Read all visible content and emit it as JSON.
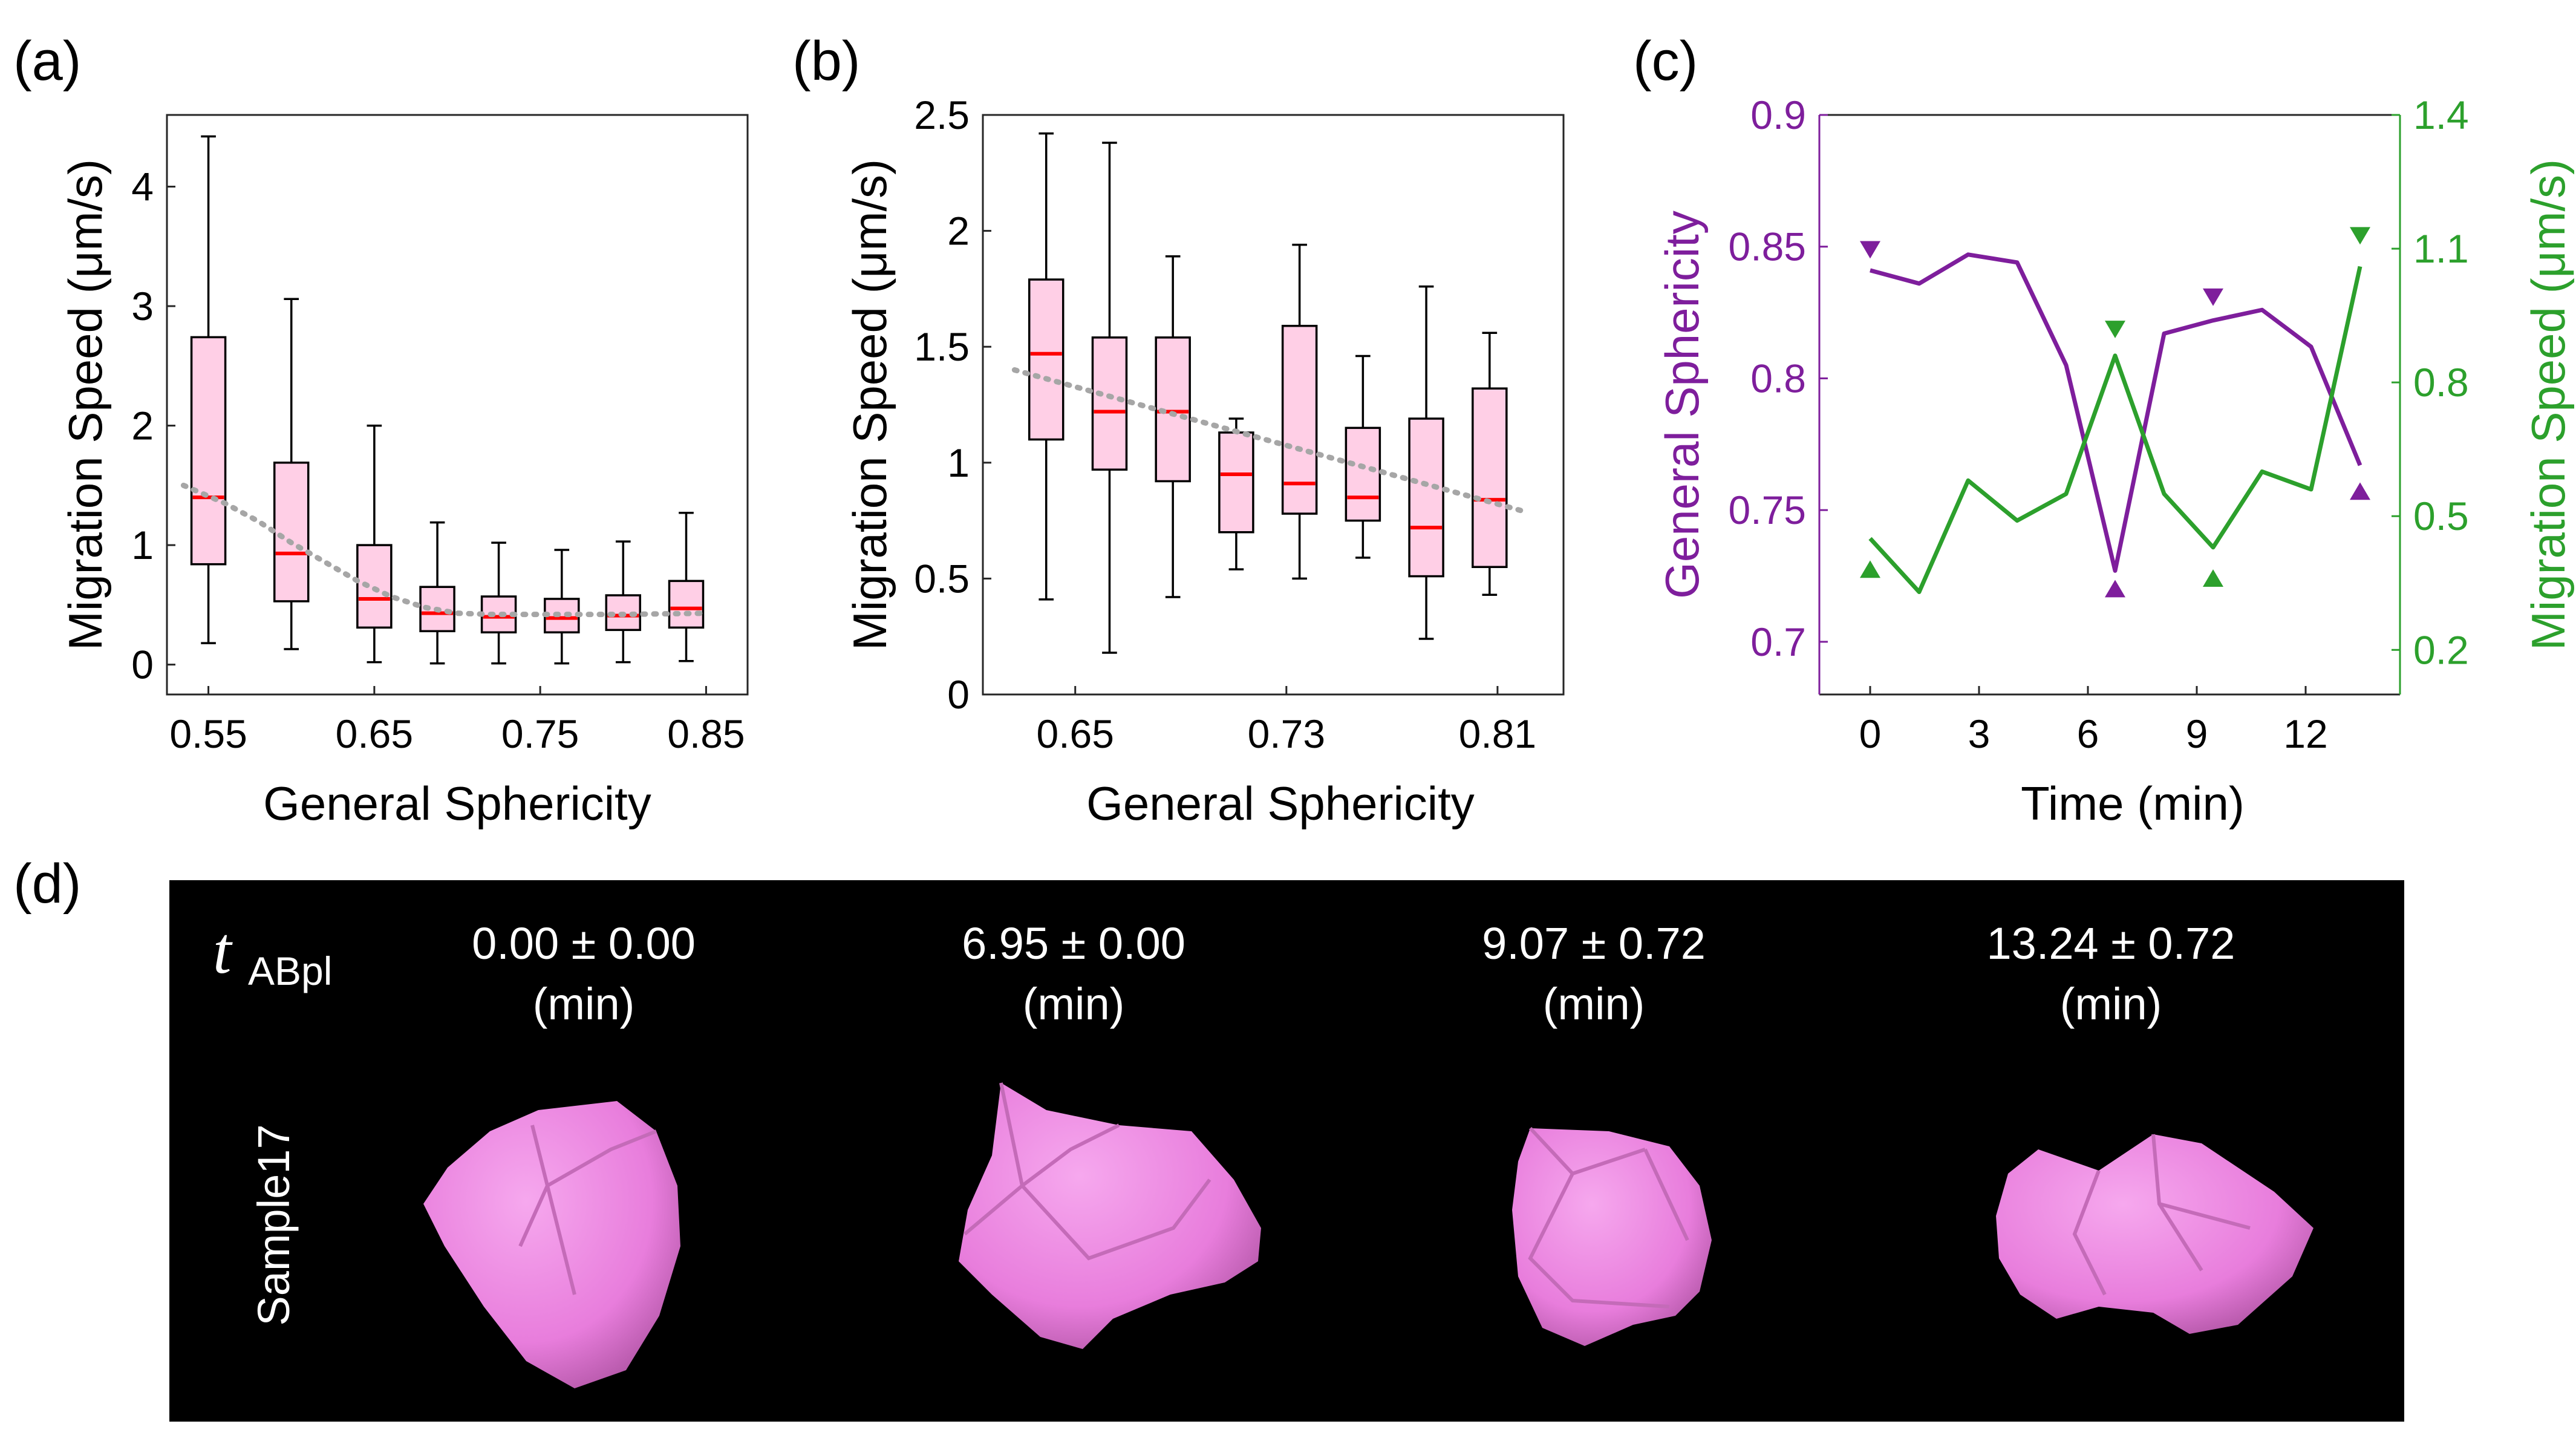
{
  "panels": {
    "a": "(a)",
    "b": "(b)",
    "c": "(c)",
    "d": "(d)"
  },
  "chart_data": [
    {
      "id": "a",
      "type": "box",
      "xlabel": "General Sphericity",
      "ylabel": "Migration Speed (μm/s)",
      "xlim": [
        0.525,
        0.875
      ],
      "ylim": [
        -0.25,
        4.6
      ],
      "xticks": [
        0.55,
        0.65,
        0.75,
        0.85
      ],
      "xtick_labels": [
        "0.55",
        "0.65",
        "0.75",
        "0.85"
      ],
      "yticks": [
        0,
        1,
        2,
        3,
        4
      ],
      "ytick_labels": [
        "0",
        "1",
        "2",
        "3",
        "4"
      ],
      "colors": {
        "box": "#ffcfe6",
        "median": "#ff0000",
        "trend": "#a6a6a6"
      },
      "boxes": [
        {
          "x": 0.55,
          "min": 0.18,
          "q1": 0.84,
          "median": 1.4,
          "q3": 2.74,
          "max": 4.42
        },
        {
          "x": 0.6,
          "min": 0.13,
          "q1": 0.53,
          "median": 0.93,
          "q3": 1.69,
          "max": 3.06
        },
        {
          "x": 0.65,
          "min": 0.02,
          "q1": 0.31,
          "median": 0.55,
          "q3": 1.0,
          "max": 2.0
        },
        {
          "x": 0.688,
          "min": 0.01,
          "q1": 0.28,
          "median": 0.43,
          "q3": 0.65,
          "max": 1.19
        },
        {
          "x": 0.725,
          "min": 0.01,
          "q1": 0.27,
          "median": 0.4,
          "q3": 0.57,
          "max": 1.02
        },
        {
          "x": 0.763,
          "min": 0.01,
          "q1": 0.27,
          "median": 0.39,
          "q3": 0.55,
          "max": 0.96
        },
        {
          "x": 0.8,
          "min": 0.02,
          "q1": 0.29,
          "median": 0.41,
          "q3": 0.58,
          "max": 1.03
        },
        {
          "x": 0.838,
          "min": 0.03,
          "q1": 0.31,
          "median": 0.47,
          "q3": 0.7,
          "max": 1.27
        }
      ],
      "trend": {
        "x": [
          0.535,
          0.56,
          0.58,
          0.6,
          0.62,
          0.64,
          0.66,
          0.68,
          0.7,
          0.72,
          0.75,
          0.8,
          0.85
        ],
        "y": [
          1.5,
          1.35,
          1.2,
          1.02,
          0.86,
          0.7,
          0.57,
          0.48,
          0.43,
          0.42,
          0.42,
          0.42,
          0.43
        ]
      }
    },
    {
      "id": "b",
      "type": "box",
      "xlabel": "General Sphericity",
      "ylabel": "Migration Speed (μm/s)",
      "xlim": [
        0.615,
        0.835
      ],
      "ylim": [
        0,
        2.5
      ],
      "xticks": [
        0.65,
        0.73,
        0.81
      ],
      "xtick_labels": [
        "0.65",
        "0.73",
        "0.81"
      ],
      "yticks": [
        0,
        0.5,
        1,
        1.5,
        2,
        2.5
      ],
      "ytick_labels": [
        "0",
        "0.5",
        "1",
        "1.5",
        "2",
        "2.5"
      ],
      "colors": {
        "box": "#ffcfe6",
        "median": "#ff0000",
        "trend": "#a6a6a6"
      },
      "boxes": [
        {
          "x": 0.639,
          "min": 0.41,
          "q1": 1.1,
          "median": 1.47,
          "q3": 1.79,
          "max": 2.42
        },
        {
          "x": 0.663,
          "min": 0.18,
          "q1": 0.97,
          "median": 1.22,
          "q3": 1.54,
          "max": 2.38
        },
        {
          "x": 0.687,
          "min": 0.42,
          "q1": 0.92,
          "median": 1.22,
          "q3": 1.54,
          "max": 1.89
        },
        {
          "x": 0.711,
          "min": 0.54,
          "q1": 0.7,
          "median": 0.95,
          "q3": 1.13,
          "max": 1.19
        },
        {
          "x": 0.735,
          "min": 0.5,
          "q1": 0.78,
          "median": 0.91,
          "q3": 1.59,
          "max": 1.94
        },
        {
          "x": 0.759,
          "min": 0.59,
          "q1": 0.75,
          "median": 0.85,
          "q3": 1.15,
          "max": 1.46
        },
        {
          "x": 0.783,
          "min": 0.24,
          "q1": 0.51,
          "median": 0.72,
          "q3": 1.19,
          "max": 1.76
        },
        {
          "x": 0.807,
          "min": 0.43,
          "q1": 0.55,
          "median": 0.84,
          "q3": 1.32,
          "max": 1.56
        }
      ],
      "trend": {
        "x": [
          0.627,
          0.82
        ],
        "y": [
          1.4,
          0.79
        ]
      }
    },
    {
      "id": "c",
      "type": "line",
      "xlabel": "Time (min)",
      "ylabel_left": "General Sphericity",
      "ylabel_right": "Migration Speed (μm/s)",
      "xlim": [
        -1.4,
        14.6
      ],
      "ylim_left": [
        0.68,
        0.9
      ],
      "ylim_right": [
        0.1,
        1.4
      ],
      "xticks": [
        0,
        3,
        6,
        9,
        12
      ],
      "xtick_labels": [
        "0",
        "3",
        "6",
        "9",
        "12"
      ],
      "yticks_left": [
        0.7,
        0.75,
        0.8,
        0.85,
        0.9
      ],
      "ytick_labels_left": [
        "0.7",
        "0.75",
        "0.8",
        "0.85",
        "0.9"
      ],
      "yticks_right": [
        0.2,
        0.5,
        0.8,
        1.1,
        1.4
      ],
      "ytick_labels_right": [
        "0.2",
        "0.5",
        "0.8",
        "1.1",
        "1.4"
      ],
      "colors": {
        "sphericity": "#7e1e9c",
        "speed": "#2ca02c"
      },
      "series": [
        {
          "axis": "left",
          "x": [
            0,
            1.35,
            2.7,
            4.05,
            5.4,
            6.75,
            8.1,
            9.45,
            10.8,
            12.15,
            13.5
          ],
          "values": [
            0.841,
            0.836,
            0.847,
            0.844,
            0.805,
            0.727,
            0.817,
            0.822,
            0.826,
            0.812,
            0.767
          ],
          "markers": [
            {
              "x": 0,
              "y": 0.849,
              "shape": "down"
            },
            {
              "x": 6.75,
              "y": 0.72,
              "shape": "up"
            },
            {
              "x": 9.45,
              "y": 0.831,
              "shape": "down"
            },
            {
              "x": 13.5,
              "y": 0.757,
              "shape": "up"
            }
          ]
        },
        {
          "axis": "right",
          "x": [
            0,
            1.35,
            2.7,
            4.05,
            5.4,
            6.75,
            8.1,
            9.45,
            10.8,
            12.15,
            13.5
          ],
          "values": [
            0.45,
            0.33,
            0.58,
            0.49,
            0.55,
            0.86,
            0.55,
            0.43,
            0.6,
            0.56,
            1.06
          ],
          "markers": [
            {
              "x": 0,
              "y": 0.38,
              "shape": "up"
            },
            {
              "x": 6.75,
              "y": 0.92,
              "shape": "down"
            },
            {
              "x": 9.45,
              "y": 0.36,
              "shape": "up"
            },
            {
              "x": 13.5,
              "y": 1.13,
              "shape": "down"
            }
          ]
        }
      ]
    }
  ],
  "panel_d": {
    "t_symbol": "t",
    "t_subscript": "ABpl",
    "sample_label": "Sample17",
    "times": [
      {
        "value": "0.00 ± 0.00",
        "unit": "(min)"
      },
      {
        "value": "6.95 ± 0.00",
        "unit": "(min)"
      },
      {
        "value": "9.07 ± 0.72",
        "unit": "(min)"
      },
      {
        "value": "13.24 ± 0.72",
        "unit": "(min)"
      }
    ],
    "cell_color": "#ef86e3"
  }
}
